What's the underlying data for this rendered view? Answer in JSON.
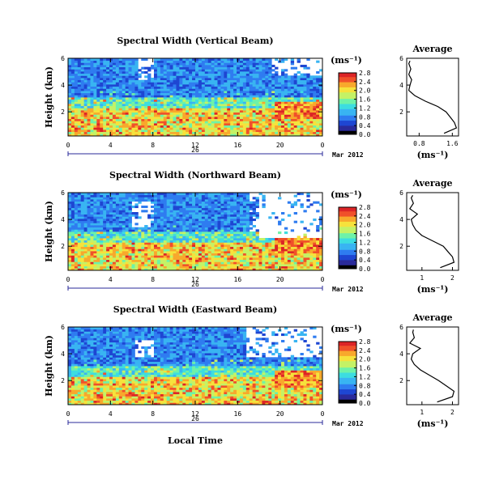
{
  "figure": {
    "xlabel": "Local Time",
    "date_label": "Mar 2012",
    "day_label": "26",
    "avg_title": "Average",
    "unit_label": "(ms⁻¹)",
    "ylabel": "Height (km)"
  },
  "colormap": [
    "#000000",
    "#2a2a9a",
    "#1e46d2",
    "#2f7cf0",
    "#39b4f2",
    "#3ddde0",
    "#6ef2a8",
    "#c4f266",
    "#f6e23c",
    "#f8a82c",
    "#f0502a",
    "#dc2426"
  ],
  "chart_data": [
    {
      "type": "heatmap",
      "title": "Spectral Width (Vertical Beam)",
      "x_ticks": [
        "0",
        "4",
        "8",
        "12",
        "16",
        "20",
        "0"
      ],
      "xlim": [
        0,
        24
      ],
      "y_ticks": [
        "6",
        "4",
        "2"
      ],
      "ylim": [
        0.2,
        6.0
      ],
      "colorbar_ticks": [
        "2.8",
        "2.4",
        "2.0",
        "1.6",
        "1.2",
        "0.8",
        "0.4",
        "0.0"
      ],
      "color_range": [
        0.0,
        2.8
      ],
      "average_profile": {
        "x_ticks": [
          "0.8",
          "1.6"
        ],
        "xlim": [
          0.5,
          1.75
        ],
        "y_ticks": [
          "6",
          "4",
          "2"
        ],
        "ylim": [
          0.2,
          6.0
        ],
        "height": [
          0.4,
          0.8,
          1.2,
          1.6,
          2.0,
          2.4,
          2.8,
          3.2,
          3.6,
          4.0,
          4.4,
          4.8,
          5.2,
          5.6,
          5.8
        ],
        "value": [
          1.4,
          1.7,
          1.65,
          1.55,
          1.45,
          1.25,
          0.95,
          0.7,
          0.55,
          0.58,
          0.62,
          0.55,
          0.6,
          0.55,
          0.58
        ]
      }
    },
    {
      "type": "heatmap",
      "title": "Spectral Width (Northward Beam)",
      "x_ticks": [
        "0",
        "4",
        "8",
        "12",
        "16",
        "20",
        "0"
      ],
      "xlim": [
        0,
        24
      ],
      "y_ticks": [
        "6",
        "4",
        "2"
      ],
      "ylim": [
        0.2,
        6.0
      ],
      "colorbar_ticks": [
        "2.8",
        "2.4",
        "2.0",
        "1.6",
        "1.2",
        "0.8",
        "0.4",
        "0.0"
      ],
      "color_range": [
        0.0,
        2.8
      ],
      "average_profile": {
        "x_ticks": [
          "1",
          "2"
        ],
        "xlim": [
          0.5,
          2.2
        ],
        "y_ticks": [
          "6",
          "4",
          "2"
        ],
        "ylim": [
          0.2,
          6.0
        ],
        "height": [
          0.4,
          0.8,
          1.2,
          1.6,
          2.0,
          2.4,
          2.8,
          3.2,
          3.6,
          4.0,
          4.4,
          4.8,
          5.2,
          5.6,
          5.8
        ],
        "value": [
          1.6,
          2.05,
          2.0,
          1.85,
          1.7,
          1.35,
          1.0,
          0.8,
          0.7,
          0.65,
          0.85,
          0.6,
          0.72,
          0.65,
          0.7
        ]
      }
    },
    {
      "type": "heatmap",
      "title": "Spectral Width (Eastward Beam)",
      "x_ticks": [
        "0",
        "4",
        "8",
        "12",
        "16",
        "20",
        "0"
      ],
      "xlim": [
        0,
        24
      ],
      "y_ticks": [
        "6",
        "4",
        "2"
      ],
      "ylim": [
        0.2,
        6.0
      ],
      "colorbar_ticks": [
        "2.8",
        "2.4",
        "2.0",
        "1.6",
        "1.2",
        "0.8",
        "0.4",
        "0.0"
      ],
      "color_range": [
        0.0,
        2.8
      ],
      "average_profile": {
        "x_ticks": [
          "1",
          "2"
        ],
        "xlim": [
          0.5,
          2.2
        ],
        "y_ticks": [
          "6",
          "4",
          "2"
        ],
        "ylim": [
          0.2,
          6.0
        ],
        "height": [
          0.4,
          0.8,
          1.2,
          1.6,
          2.0,
          2.4,
          2.8,
          3.2,
          3.6,
          4.0,
          4.4,
          4.8,
          5.2,
          5.6,
          5.8
        ],
        "value": [
          1.5,
          2.0,
          2.05,
          1.8,
          1.55,
          1.25,
          0.95,
          0.75,
          0.65,
          0.7,
          0.95,
          0.6,
          0.75,
          0.7,
          0.72
        ]
      }
    }
  ]
}
